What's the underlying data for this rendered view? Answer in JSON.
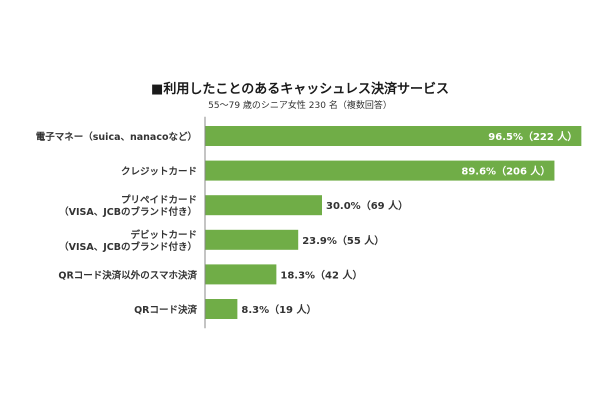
{
  "chart_data": {
    "type": "bar",
    "orientation": "horizontal",
    "title": "■利用したことのあるキャッシュレス決済サービス",
    "subtitle": "55〜79 歳のシニア女性 230 名（複数回答）",
    "xlim": [
      0,
      100
    ],
    "grid": false,
    "legend": "none",
    "categories": [
      [
        "電子マネー（suica、nanacoなど）"
      ],
      [
        "クレジットカード"
      ],
      [
        "プリペイドカード",
        "（VISA、JCBのブランド付き）"
      ],
      [
        "デビットカード",
        "（VISA、JCBのブランド付き）"
      ],
      [
        "QRコード決済以外のスマホ決済"
      ],
      [
        "QRコード決済"
      ]
    ],
    "values": [
      96.5,
      89.6,
      30.0,
      23.9,
      18.3,
      8.3
    ],
    "labels": [
      "96.5%（222 人）",
      "89.6%（206 人）",
      "30.0%（69 人）",
      "23.9%（55 人）",
      "18.3%（42 人）",
      "8.3%（19 人）"
    ],
    "bar_color": "#70ad47"
  }
}
